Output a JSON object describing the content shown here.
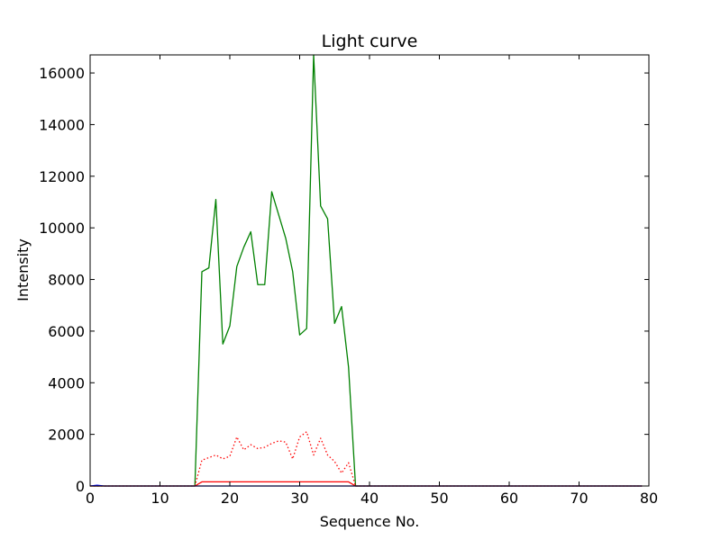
{
  "chart_data": {
    "type": "line",
    "title": "Light curve",
    "xlabel": "Sequence No.",
    "ylabel": "Intensity",
    "xlim": [
      0,
      80
    ],
    "ylim": [
      0,
      16700
    ],
    "xticks": [
      0,
      10,
      20,
      30,
      40,
      50,
      60,
      70,
      80
    ],
    "yticks": [
      0,
      2000,
      4000,
      6000,
      8000,
      10000,
      12000,
      14000,
      16000
    ],
    "grid": false,
    "colors": {
      "green": "#008000",
      "red": "#ff0000",
      "blue": "#0000ff"
    },
    "series": [
      {
        "color": "green",
        "style": "solid",
        "x": [
          0,
          1,
          2,
          3,
          4,
          5,
          6,
          7,
          8,
          9,
          10,
          11,
          12,
          13,
          14,
          15,
          16,
          17,
          18,
          19,
          20,
          21,
          22,
          23,
          24,
          25,
          26,
          27,
          28,
          29,
          30,
          31,
          32,
          33,
          34,
          35,
          36,
          37,
          38,
          39,
          40,
          41,
          42,
          43,
          44,
          45,
          46,
          47,
          48,
          49,
          50,
          51,
          52,
          53,
          54,
          55,
          56,
          57,
          58,
          59,
          60,
          61,
          62,
          63,
          64,
          65,
          66,
          67,
          68,
          69,
          70,
          71,
          72,
          73,
          74,
          75,
          76,
          77,
          78,
          79
        ],
        "y": [
          0,
          0,
          0,
          0,
          0,
          0,
          0,
          0,
          0,
          0,
          0,
          0,
          0,
          0,
          0,
          0,
          8300,
          8450,
          11100,
          5500,
          6200,
          8500,
          9250,
          9850,
          7800,
          7800,
          11400,
          10500,
          9600,
          8300,
          5850,
          6100,
          16700,
          10850,
          10350,
          6300,
          6950,
          4600,
          0,
          0,
          0,
          0,
          0,
          0,
          0,
          0,
          0,
          0,
          0,
          0,
          0,
          0,
          0,
          0,
          0,
          0,
          0,
          0,
          0,
          0,
          0,
          0,
          0,
          0,
          0,
          0,
          0,
          0,
          0,
          0,
          0,
          0,
          0,
          0,
          0,
          0,
          0,
          0,
          0,
          0
        ]
      },
      {
        "color": "red",
        "style": "dotted",
        "x": [
          0,
          1,
          2,
          3,
          4,
          5,
          6,
          7,
          8,
          9,
          10,
          11,
          12,
          13,
          14,
          15,
          16,
          17,
          18,
          19,
          20,
          21,
          22,
          23,
          24,
          25,
          26,
          27,
          28,
          29,
          30,
          31,
          32,
          33,
          34,
          35,
          36,
          37,
          38,
          39,
          40,
          41,
          42,
          43,
          44,
          45,
          46,
          47,
          48,
          49,
          50,
          51,
          52,
          53,
          54,
          55,
          56,
          57,
          58,
          59,
          60,
          61,
          62,
          63,
          64,
          65,
          66,
          67,
          68,
          69,
          70,
          71,
          72,
          73,
          74,
          75,
          76,
          77,
          78,
          79
        ],
        "y": [
          0,
          0,
          0,
          0,
          0,
          0,
          0,
          0,
          0,
          0,
          0,
          0,
          0,
          0,
          0,
          0,
          1000,
          1100,
          1200,
          1050,
          1150,
          1900,
          1400,
          1600,
          1450,
          1500,
          1650,
          1750,
          1700,
          1050,
          1900,
          2100,
          1200,
          1850,
          1200,
          950,
          500,
          900,
          0,
          0,
          0,
          0,
          0,
          0,
          0,
          0,
          0,
          0,
          0,
          0,
          0,
          0,
          0,
          0,
          0,
          0,
          0,
          0,
          0,
          0,
          0,
          0,
          0,
          0,
          0,
          0,
          0,
          0,
          0,
          0,
          0,
          0,
          0,
          0,
          0,
          0,
          0,
          0,
          0,
          0
        ]
      },
      {
        "color": "red",
        "style": "solid",
        "x": [
          0,
          1,
          2,
          3,
          4,
          5,
          6,
          7,
          8,
          9,
          10,
          11,
          12,
          13,
          14,
          15,
          16,
          17,
          18,
          19,
          20,
          21,
          22,
          23,
          24,
          25,
          26,
          27,
          28,
          29,
          30,
          31,
          32,
          33,
          34,
          35,
          36,
          37,
          38,
          39,
          40,
          41,
          42,
          43,
          44,
          45,
          46,
          47,
          48,
          49,
          50,
          51,
          52,
          53,
          54,
          55,
          56,
          57,
          58,
          59,
          60,
          61,
          62,
          63,
          64,
          65,
          66,
          67,
          68,
          69,
          70,
          71,
          72,
          73,
          74,
          75,
          76,
          77,
          78,
          79
        ],
        "y": [
          0,
          0,
          0,
          0,
          0,
          0,
          0,
          0,
          0,
          0,
          0,
          0,
          0,
          0,
          0,
          0,
          160,
          160,
          160,
          160,
          160,
          160,
          160,
          160,
          160,
          160,
          160,
          160,
          160,
          160,
          160,
          160,
          160,
          160,
          160,
          160,
          160,
          160,
          0,
          0,
          0,
          0,
          0,
          0,
          0,
          0,
          0,
          0,
          0,
          0,
          0,
          0,
          0,
          0,
          0,
          0,
          0,
          0,
          0,
          0,
          0,
          0,
          0,
          0,
          0,
          0,
          0,
          0,
          0,
          0,
          0,
          0,
          0,
          0,
          0,
          0,
          0,
          0,
          0,
          0
        ]
      },
      {
        "color": "blue",
        "style": "solid",
        "x": [
          0,
          1,
          2,
          3,
          4,
          5,
          6,
          7,
          8,
          9,
          10,
          11,
          12,
          13,
          14,
          15,
          16,
          17,
          18,
          19,
          20,
          21,
          22,
          23,
          24,
          25,
          26,
          27,
          28,
          29,
          30,
          31,
          32,
          33,
          34,
          35,
          36,
          37,
          38,
          39,
          40,
          41,
          42,
          43,
          44,
          45,
          46,
          47,
          48,
          49,
          50,
          51,
          52,
          53,
          54,
          55,
          56,
          57,
          58,
          59,
          60,
          61,
          62,
          63,
          64,
          65,
          66,
          67,
          68,
          69,
          70,
          71,
          72,
          73,
          74,
          75,
          76,
          77,
          78,
          79
        ],
        "y": [
          0,
          30,
          0,
          0,
          0,
          0,
          0,
          0,
          0,
          0,
          0,
          0,
          0,
          0,
          0,
          0,
          0,
          0,
          0,
          0,
          0,
          0,
          0,
          0,
          0,
          0,
          0,
          0,
          0,
          0,
          0,
          0,
          0,
          0,
          0,
          0,
          0,
          0,
          0,
          0,
          0,
          0,
          0,
          0,
          0,
          0,
          0,
          0,
          0,
          0,
          0,
          0,
          0,
          0,
          0,
          0,
          0,
          0,
          0,
          0,
          0,
          0,
          0,
          0,
          0,
          0,
          0,
          0,
          0,
          0,
          0,
          0,
          0,
          0,
          0,
          0,
          0,
          0,
          0,
          0
        ]
      }
    ]
  }
}
